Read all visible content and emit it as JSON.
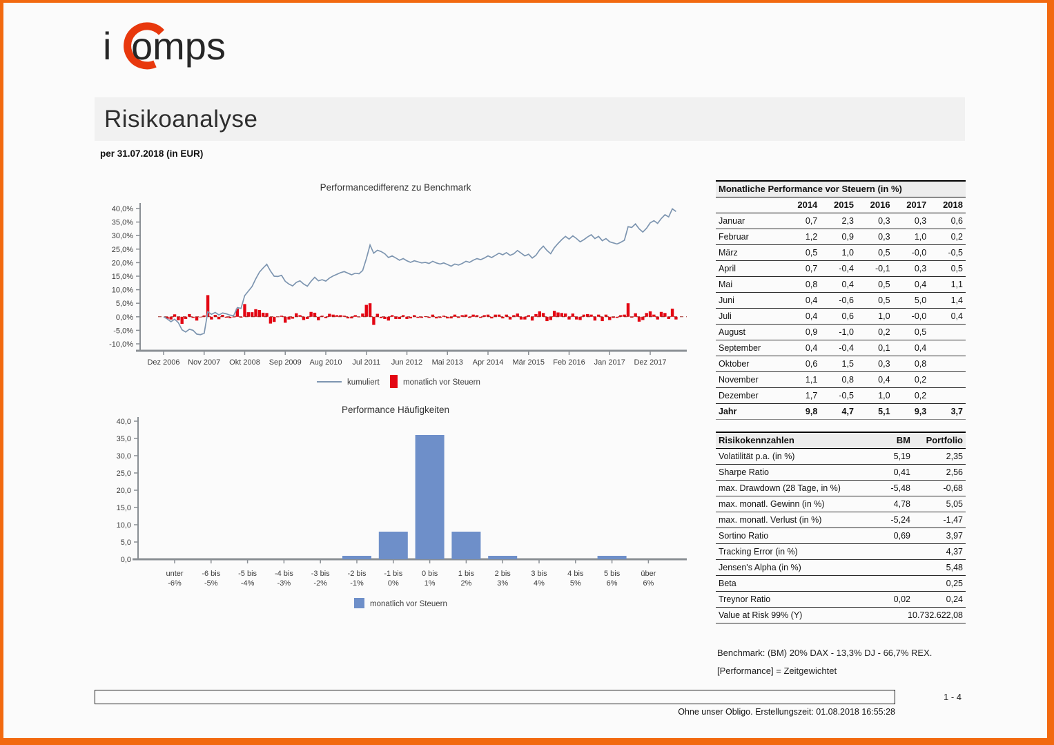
{
  "page": {
    "title": "Risikoanalyse",
    "subtitle": "per 31.07.2018 (in EUR)",
    "page_number": "1 - 4",
    "footer_note": "Ohne unser Obligo. Erstellungszeit: 01.08.2018 16:55:28",
    "notes": [
      "Benchmark: (BM) 20% DAX - 13,3% DJ - 66,7% REX.",
      "[Performance] = Zeitgewichtet"
    ]
  },
  "logo": {
    "prefix": "i",
    "suffix": "omps",
    "accent_color": "#e8380d",
    "text_color": "#262626"
  },
  "colors": {
    "frame_orange": "#f2690f",
    "line_blue": "#7d95b0",
    "bar_red": "#e30613",
    "hist_blue": "#6e8fc9",
    "zero_line": "#9e2b25",
    "axis": "#8a8f94",
    "chart_text": "#3c3c3c"
  },
  "chart_data": [
    {
      "type": "line+bar",
      "title": "Performancedifferenz zu Benchmark",
      "ylabel": "",
      "y_min": -10,
      "y_max": 40,
      "y_tick_values": [
        40,
        35,
        30,
        25,
        20,
        15,
        10,
        5,
        0,
        -5,
        -10
      ],
      "y_tick_labels": [
        "40,0%",
        "35,0%",
        "30,0%",
        "25,0%",
        "20,0%",
        "15,0%",
        "10,0%",
        "5,0%",
        "0,0%",
        "-5,0%",
        "-10,0%"
      ],
      "x_tick_labels": [
        "Dez 2006",
        "Nov 2007",
        "Okt 2008",
        "Sep 2009",
        "Aug 2010",
        "Jul 2011",
        "Jun 2012",
        "Mai 2013",
        "Apr 2014",
        "Mär 2015",
        "Feb 2016",
        "Jan 2017",
        "Dez 2017"
      ],
      "x_tick_month_step": 11,
      "series": [
        {
          "name": "kumuliert",
          "type": "line",
          "values": [
            0.0,
            -0.8,
            -1.8,
            -0.9,
            -2.2,
            -4.8,
            -5.6,
            -4.6,
            -5.0,
            -6.4,
            -6.6,
            -6.1,
            1.9,
            0.9,
            1.6,
            0.7,
            1.4,
            1.1,
            0.6,
            0.4,
            3.4,
            3.1,
            7.8,
            9.5,
            11.2,
            14.0,
            16.5,
            18.0,
            19.4,
            16.9,
            15.0,
            14.9,
            15.3,
            13.1,
            12.1,
            11.4,
            12.7,
            13.3,
            12.1,
            11.3,
            13.1,
            14.6,
            13.3,
            13.7,
            13.2,
            14.3,
            15.1,
            15.7,
            16.3,
            16.7,
            16.1,
            15.5,
            16.1,
            15.9,
            17.1,
            21.5,
            26.5,
            23.5,
            24.6,
            24.1,
            23.3,
            21.9,
            22.5,
            21.7,
            20.9,
            21.5,
            20.7,
            20.1,
            20.7,
            20.3,
            19.9,
            20.1,
            19.7,
            20.5,
            19.9,
            19.5,
            19.9,
            19.3,
            18.7,
            19.5,
            19.1,
            19.7,
            20.5,
            20.1,
            20.9,
            21.5,
            21.1,
            21.7,
            22.5,
            21.9,
            22.7,
            23.5,
            22.9,
            23.7,
            22.7,
            23.3,
            24.5,
            23.5,
            22.5,
            23.1,
            21.7,
            22.7,
            24.7,
            26.1,
            24.5,
            23.3,
            25.5,
            27.1,
            28.5,
            29.7,
            28.7,
            29.9,
            28.9,
            27.7,
            28.5,
            29.5,
            30.3,
            28.9,
            29.7,
            28.1,
            28.9,
            27.7,
            27.3,
            26.9,
            27.5,
            28.3,
            33.3,
            33.0,
            34.3,
            32.5,
            31.3,
            32.7,
            34.7,
            35.5,
            34.5,
            36.3,
            37.7,
            36.9,
            39.9,
            38.9
          ]
        },
        {
          "name": "monatlich vor Steuern",
          "type": "bar",
          "values_derivation": "month-over-month difference of kumuliert series"
        }
      ],
      "legend_position": "bottom"
    },
    {
      "type": "bar",
      "title": "Performance Häufigkeiten",
      "y_min": 0,
      "y_max": 40,
      "y_tick_values": [
        40,
        35,
        30,
        25,
        20,
        15,
        10,
        5,
        0
      ],
      "y_tick_labels": [
        "40,0",
        "35,0",
        "30,0",
        "25,0",
        "20,0",
        "15,0",
        "10,0",
        "5,0",
        "0,0"
      ],
      "categories": [
        [
          "unter",
          "-6%"
        ],
        [
          "-6 bis",
          "-5%"
        ],
        [
          "-5 bis",
          "-4%"
        ],
        [
          "-4 bis",
          "-3%"
        ],
        [
          "-3 bis",
          "-2%"
        ],
        [
          "-2 bis",
          "-1%"
        ],
        [
          "-1 bis",
          "0%"
        ],
        [
          "0 bis",
          "1%"
        ],
        [
          "1 bis",
          "2%"
        ],
        [
          "2 bis",
          "3%"
        ],
        [
          "3 bis",
          "4%"
        ],
        [
          "4 bis",
          "5%"
        ],
        [
          "5 bis",
          "6%"
        ],
        [
          "über",
          "6%"
        ]
      ],
      "values": [
        0,
        0,
        0,
        0,
        0,
        1,
        8,
        36,
        8,
        1,
        0,
        0,
        1,
        0
      ],
      "legend": "monatlich vor Steuern",
      "legend_position": "bottom"
    }
  ],
  "monthly_table": {
    "title": "Monatliche Performance vor Steuern (in %)",
    "years": [
      "2014",
      "2015",
      "2016",
      "2017",
      "2018"
    ],
    "rows": [
      {
        "month": "Januar",
        "values": [
          "0,7",
          "2,3",
          "0,3",
          "0,3",
          "0,6"
        ]
      },
      {
        "month": "Februar",
        "values": [
          "1,2",
          "0,9",
          "0,3",
          "1,0",
          "0,2"
        ]
      },
      {
        "month": "März",
        "values": [
          "0,5",
          "1,0",
          "0,5",
          "-0,0",
          "-0,5"
        ]
      },
      {
        "month": "April",
        "values": [
          "0,7",
          "-0,4",
          "-0,1",
          "0,3",
          "0,5"
        ]
      },
      {
        "month": "Mai",
        "values": [
          "0,8",
          "0,4",
          "0,5",
          "0,4",
          "1,1"
        ]
      },
      {
        "month": "Juni",
        "values": [
          "0,4",
          "-0,6",
          "0,5",
          "5,0",
          "1,4"
        ]
      },
      {
        "month": "Juli",
        "values": [
          "0,4",
          "0,6",
          "1,0",
          "-0,0",
          "0,4"
        ]
      },
      {
        "month": "August",
        "values": [
          "0,9",
          "-1,0",
          "0,2",
          "0,5",
          ""
        ]
      },
      {
        "month": "September",
        "values": [
          "0,4",
          "-0,4",
          "0,1",
          "0,4",
          ""
        ]
      },
      {
        "month": "Oktober",
        "values": [
          "0,6",
          "1,5",
          "0,3",
          "0,8",
          ""
        ]
      },
      {
        "month": "November",
        "values": [
          "1,1",
          "0,8",
          "0,4",
          "0,2",
          ""
        ]
      },
      {
        "month": "Dezember",
        "values": [
          "1,7",
          "-0,5",
          "1,0",
          "0,2",
          ""
        ]
      }
    ],
    "total": {
      "month": "Jahr",
      "values": [
        "9,8",
        "4,7",
        "5,1",
        "9,3",
        "3,7"
      ]
    }
  },
  "risk_table": {
    "title": "Risikokennzahlen",
    "col1": "BM",
    "col2": "Portfolio",
    "rows": [
      {
        "label": "Volatilität p.a. (in %)",
        "bm": "5,19",
        "portfolio": "2,35"
      },
      {
        "label": "Sharpe Ratio",
        "bm": "0,41",
        "portfolio": "2,56"
      },
      {
        "label": "max. Drawdown (28 Tage, in %)",
        "bm": "-5,48",
        "portfolio": "-0,68"
      },
      {
        "label": "max. monatl. Gewinn (in %)",
        "bm": "4,78",
        "portfolio": "5,05"
      },
      {
        "label": "max. monatl. Verlust (in %)",
        "bm": "-5,24",
        "portfolio": "-1,47"
      },
      {
        "label": "Sortino Ratio",
        "bm": "0,69",
        "portfolio": "3,97"
      },
      {
        "label": "Tracking Error (in %)",
        "bm": "",
        "portfolio": "4,37"
      },
      {
        "label": "Jensen's Alpha (in %)",
        "bm": "",
        "portfolio": "5,48"
      },
      {
        "label": "Beta",
        "bm": "",
        "portfolio": "0,25"
      },
      {
        "label": "Treynor Ratio",
        "bm": "0,02",
        "portfolio": "0,24"
      },
      {
        "label": "Value at Risk 99% (Y)",
        "bm": "",
        "portfolio": "10.732.622,08",
        "wide": true
      }
    ]
  }
}
